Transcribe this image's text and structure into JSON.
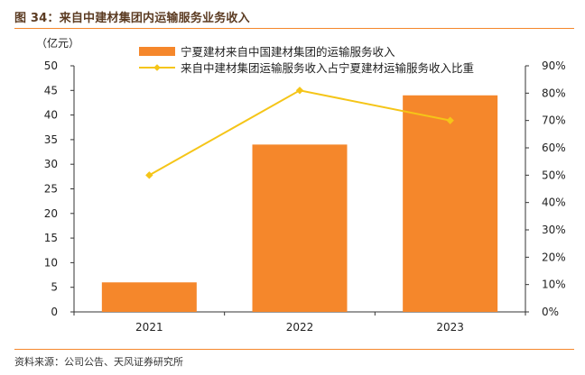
{
  "figure": {
    "title": "图 34：来自中建材集团内运输服务业务收入",
    "source": "资料来源：公司公告、天风证券研究所"
  },
  "colors": {
    "accent": "#f5872b",
    "bar": "#f5872b",
    "line": "#f5c518",
    "axis": "#333333",
    "title": "#5b3b22"
  },
  "chart_data": {
    "type": "bar",
    "categories": [
      "2021",
      "2022",
      "2023"
    ],
    "y_unit_label": "（亿元）",
    "ylim": [
      0,
      50
    ],
    "y_ticks": [
      0,
      5,
      10,
      15,
      20,
      25,
      30,
      35,
      40,
      45,
      50
    ],
    "y2lim": [
      0,
      0.9
    ],
    "y2_ticks": [
      0,
      0.1,
      0.2,
      0.3,
      0.4,
      0.5,
      0.6,
      0.7,
      0.8,
      0.9
    ],
    "y2_tick_labels": [
      "0%",
      "10%",
      "20%",
      "30%",
      "40%",
      "50%",
      "60%",
      "70%",
      "80%",
      "90%"
    ],
    "grid": false,
    "legend": "top-right",
    "series": [
      {
        "name": "宁夏建材来自中国建材集团的运输服务收入",
        "type": "bar",
        "axis": "left",
        "values": [
          6.0,
          34.0,
          44.0
        ]
      },
      {
        "name": "来自中建材集团运输服务收入占宁夏建材运输服务收入比重",
        "type": "line",
        "axis": "right",
        "values": [
          0.5,
          0.81,
          0.7
        ]
      }
    ]
  }
}
